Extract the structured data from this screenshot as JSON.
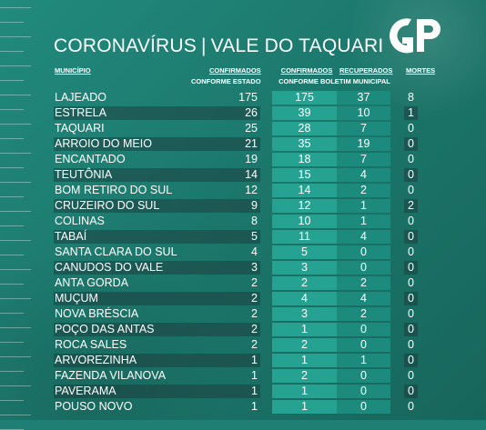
{
  "title": {
    "part1": "CORONAVÍRUS",
    "separator": "|",
    "part2": "VALE DO TAQUARI"
  },
  "logo": {
    "text": "GP"
  },
  "headers": {
    "municipio": "MUNICÍPIO",
    "confirmados_estado_1": "CONFIRMADOS",
    "confirmados_estado_2": "CONFORME ESTADO",
    "confirmados_boletim_1": "CONFIRMADOS",
    "recuperados": "RECUPERADOS",
    "boletim_2": "CONFORME BOLETIM MUNICIPAL",
    "mortes": "MORTES"
  },
  "rows": [
    {
      "name": "LAJEADO",
      "estado": "175",
      "confirmados": "175",
      "recuperados": "37",
      "mortes": "8"
    },
    {
      "name": "ESTRELA",
      "estado": "26",
      "confirmados": "39",
      "recuperados": "10",
      "mortes": "1"
    },
    {
      "name": "TAQUARI",
      "estado": "25",
      "confirmados": "28",
      "recuperados": "7",
      "mortes": "0"
    },
    {
      "name": "ARROIO DO MEIO",
      "estado": "21",
      "confirmados": "35",
      "recuperados": "19",
      "mortes": "0"
    },
    {
      "name": "ENCANTADO",
      "estado": "19",
      "confirmados": "18",
      "recuperados": "7",
      "mortes": "0"
    },
    {
      "name": "TEUTÔNIA",
      "estado": "14",
      "confirmados": "15",
      "recuperados": "4",
      "mortes": "0"
    },
    {
      "name": "BOM RETIRO DO SUL",
      "estado": "12",
      "confirmados": "14",
      "recuperados": "2",
      "mortes": "0"
    },
    {
      "name": "CRUZEIRO DO SUL",
      "estado": "9",
      "confirmados": "12",
      "recuperados": "1",
      "mortes": "2"
    },
    {
      "name": "COLINAS",
      "estado": "8",
      "confirmados": "10",
      "recuperados": "1",
      "mortes": "0"
    },
    {
      "name": "TABAÍ",
      "estado": "5",
      "confirmados": "11",
      "recuperados": "4",
      "mortes": "0"
    },
    {
      "name": "SANTA CLARA DO SUL",
      "estado": "4",
      "confirmados": "5",
      "recuperados": "0",
      "mortes": "0"
    },
    {
      "name": "CANUDOS DO VALE",
      "estado": "3",
      "confirmados": "3",
      "recuperados": "0",
      "mortes": "0"
    },
    {
      "name": "ANTA GORDA",
      "estado": "2",
      "confirmados": "2",
      "recuperados": "2",
      "mortes": "0"
    },
    {
      "name": "MUÇUM",
      "estado": "2",
      "confirmados": "4",
      "recuperados": "4",
      "mortes": "0"
    },
    {
      "name": "NOVA BRÉSCIA",
      "estado": "2",
      "confirmados": "3",
      "recuperados": "2",
      "mortes": "0"
    },
    {
      "name": "POÇO DAS ANTAS",
      "estado": "2",
      "confirmados": "1",
      "recuperados": "0",
      "mortes": "0"
    },
    {
      "name": "ROCA SALES",
      "estado": "2",
      "confirmados": "2",
      "recuperados": "0",
      "mortes": "0"
    },
    {
      "name": "ARVOREZINHA",
      "estado": "1",
      "confirmados": "1",
      "recuperados": "1",
      "mortes": "0"
    },
    {
      "name": "FAZENDA VILANOVA",
      "estado": "1",
      "confirmados": "2",
      "recuperados": "0",
      "mortes": "0"
    },
    {
      "name": "PAVERAMA",
      "estado": "1",
      "confirmados": "1",
      "recuperados": "0",
      "mortes": "0"
    },
    {
      "name": "POUSO NOVO",
      "estado": "1",
      "confirmados": "1",
      "recuperados": "0",
      "mortes": "0"
    }
  ]
}
